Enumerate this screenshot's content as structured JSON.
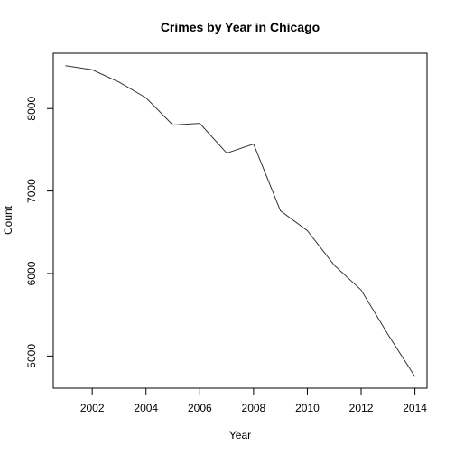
{
  "chart_data": {
    "type": "line",
    "title": "Crimes by Year in Chicago",
    "xlabel": "Year",
    "ylabel": "Count",
    "xlim": [
      2000.55,
      2014.45
    ],
    "ylim": [
      4610,
      8670
    ],
    "xticks": [
      2002,
      2004,
      2006,
      2008,
      2010,
      2012,
      2014
    ],
    "yticks": [
      5000,
      6000,
      7000,
      8000
    ],
    "grid": false,
    "series": [
      {
        "x": [
          2001,
          2002,
          2003,
          2004,
          2005,
          2006,
          2007,
          2008,
          2009,
          2010,
          2011,
          2012,
          2013,
          2014
        ],
        "values": [
          8520,
          8470,
          8320,
          8130,
          7800,
          7820,
          7460,
          7570,
          6760,
          6520,
          6100,
          5800,
          5260,
          4750
        ]
      }
    ]
  }
}
